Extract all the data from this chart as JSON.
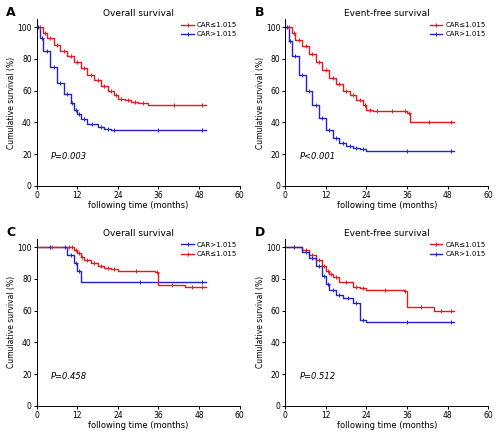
{
  "panels": [
    {
      "label": "A",
      "title": "Overall survival",
      "pvalue": "P=0.003",
      "ylabel": "Cumulative survival (%)",
      "xlabel": "following time (months)",
      "ylim": [
        0,
        105
      ],
      "xlim": [
        0,
        60
      ],
      "xticks": [
        0,
        12,
        24,
        36,
        48,
        60
      ],
      "yticks": [
        0,
        20,
        40,
        60,
        80,
        100
      ],
      "legend_order": [
        "CAR≤1.015",
        "CAR>1.015"
      ],
      "legend_colors": [
        "#e8191c",
        "#2222cc"
      ],
      "curves": [
        {
          "label": "CAR≤1.015",
          "color": "#e8191c",
          "x": [
            0,
            2,
            3,
            5,
            7,
            9,
            11,
            13,
            15,
            17,
            19,
            21,
            23,
            24,
            26,
            28,
            30,
            33,
            48,
            50
          ],
          "y": [
            100,
            96,
            93,
            89,
            85,
            82,
            78,
            74,
            70,
            67,
            63,
            60,
            57,
            55,
            54,
            53,
            52,
            51,
            51,
            51
          ]
        },
        {
          "label": "CAR>1.015",
          "color": "#2222cc",
          "x": [
            0,
            1,
            2,
            4,
            6,
            8,
            10,
            11,
            12,
            13,
            15,
            18,
            20,
            22,
            24,
            48,
            50
          ],
          "y": [
            100,
            93,
            85,
            75,
            65,
            58,
            52,
            48,
            45,
            42,
            39,
            37,
            36,
            35,
            35,
            35,
            35
          ]
        }
      ]
    },
    {
      "label": "B",
      "title": "Event-free survival",
      "pvalue": "P<0.001",
      "ylabel": "Cumulative survival (%)",
      "xlabel": "following time (months)",
      "ylim": [
        0,
        105
      ],
      "xlim": [
        0,
        60
      ],
      "xticks": [
        0,
        12,
        24,
        36,
        48,
        60
      ],
      "yticks": [
        0,
        20,
        40,
        60,
        80,
        100
      ],
      "legend_order": [
        "CAR≤1.015",
        "CAR>1.015"
      ],
      "legend_colors": [
        "#e8191c",
        "#2222cc"
      ],
      "curves": [
        {
          "label": "CAR≤1.015",
          "color": "#e8191c",
          "x": [
            0,
            2,
            3,
            5,
            7,
            9,
            11,
            13,
            15,
            17,
            19,
            21,
            23,
            24,
            26,
            28,
            35,
            36,
            37,
            48,
            50
          ],
          "y": [
            100,
            96,
            92,
            88,
            83,
            78,
            73,
            68,
            64,
            60,
            57,
            54,
            51,
            48,
            47,
            47,
            47,
            46,
            40,
            40,
            40
          ]
        },
        {
          "label": "CAR>1.015",
          "color": "#2222cc",
          "x": [
            0,
            1,
            2,
            4,
            6,
            8,
            10,
            12,
            14,
            16,
            18,
            20,
            22,
            24,
            48,
            50
          ],
          "y": [
            100,
            91,
            82,
            70,
            60,
            51,
            43,
            35,
            30,
            27,
            25,
            24,
            23,
            22,
            22,
            22
          ]
        }
      ]
    },
    {
      "label": "C",
      "title": "Overall survival",
      "pvalue": "P=0.458",
      "ylabel": "Cumulative survival (%)",
      "xlabel": "following time (months)",
      "ylim": [
        0,
        105
      ],
      "xlim": [
        0,
        60
      ],
      "xticks": [
        0,
        12,
        24,
        36,
        48,
        60
      ],
      "yticks": [
        0,
        20,
        40,
        60,
        80,
        100
      ],
      "legend_order": [
        "CAR>1.015",
        "CAR≤1.015"
      ],
      "legend_colors": [
        "#2222cc",
        "#e8191c"
      ],
      "curves": [
        {
          "label": "CAR>1.015",
          "color": "#2222cc",
          "x": [
            0,
            8,
            9,
            11,
            12,
            13,
            48,
            50
          ],
          "y": [
            100,
            100,
            95,
            90,
            85,
            78,
            78,
            78
          ]
        },
        {
          "label": "CAR≤1.015",
          "color": "#e8191c",
          "x": [
            0,
            9,
            10,
            11,
            12,
            13,
            14,
            16,
            18,
            20,
            22,
            24,
            35,
            36,
            44,
            48,
            50
          ],
          "y": [
            100,
            100,
            100,
            98,
            96,
            94,
            92,
            90,
            88,
            87,
            86,
            85,
            84,
            76,
            75,
            75,
            75
          ]
        }
      ]
    },
    {
      "label": "D",
      "title": "Event-free survival",
      "pvalue": "P=0.512",
      "ylabel": "Cumulative survival (%)",
      "xlabel": "following time (months)",
      "ylim": [
        0,
        105
      ],
      "xlim": [
        0,
        60
      ],
      "xticks": [
        0,
        12,
        24,
        36,
        48,
        60
      ],
      "yticks": [
        0,
        20,
        40,
        60,
        80,
        100
      ],
      "legend_order": [
        "CAR≤1.015",
        "CAR>1.015"
      ],
      "legend_colors": [
        "#e8191c",
        "#2222cc"
      ],
      "curves": [
        {
          "label": "CAR≤1.015",
          "color": "#e8191c",
          "x": [
            0,
            5,
            7,
            9,
            11,
            12,
            13,
            14,
            16,
            20,
            22,
            24,
            35,
            36,
            44,
            48,
            50
          ],
          "y": [
            100,
            98,
            95,
            92,
            88,
            85,
            83,
            81,
            78,
            75,
            74,
            73,
            72,
            62,
            60,
            60,
            60
          ]
        },
        {
          "label": "CAR>1.015",
          "color": "#2222cc",
          "x": [
            0,
            5,
            7,
            9,
            11,
            12,
            13,
            15,
            17,
            20,
            22,
            24,
            48,
            50
          ],
          "y": [
            100,
            97,
            93,
            88,
            82,
            77,
            73,
            70,
            68,
            65,
            54,
            53,
            53,
            53
          ]
        }
      ]
    }
  ]
}
